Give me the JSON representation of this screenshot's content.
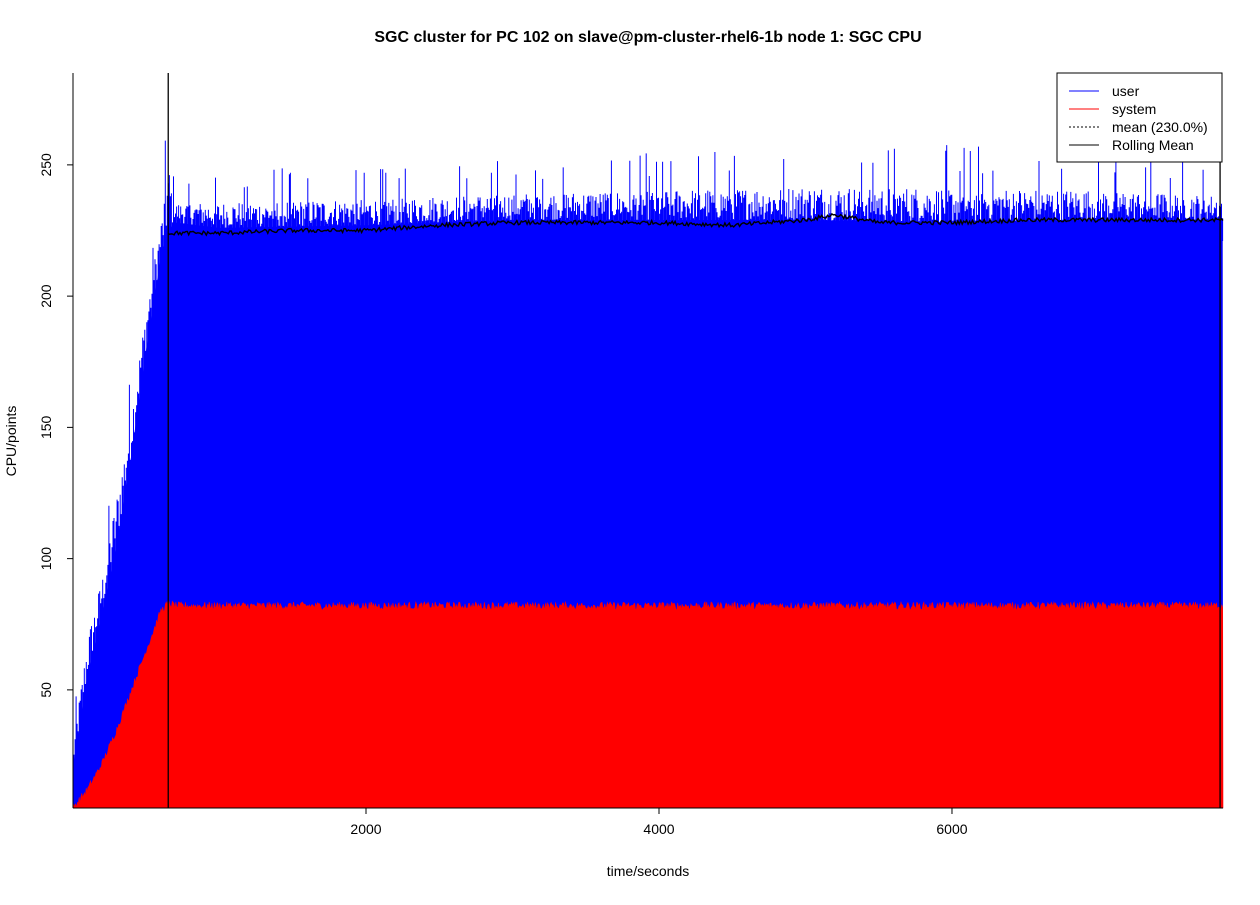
{
  "chart_data": {
    "type": "area",
    "title": "SGC cluster for PC 102 on slave@pm-cluster-rhel6-1b node 1: SGC CPU",
    "xlabel": "time/seconds",
    "ylabel": "CPU/points",
    "xlim": [
      0,
      7850
    ],
    "ylim": [
      5,
      285
    ],
    "x_ticks": [
      2000,
      4000,
      6000
    ],
    "y_ticks": [
      50,
      100,
      150,
      200,
      250
    ],
    "x_tick_labels": [
      "2000",
      "4000",
      "6000"
    ],
    "y_tick_labels": [
      "50",
      "100",
      "150",
      "200",
      "250"
    ],
    "legend_position": "top-right",
    "grid": false,
    "series": [
      {
        "name": "user",
        "role": "stacked-total",
        "color": "#0000ff",
        "x": [
          0,
          100,
          200,
          300,
          400,
          500,
          600,
          650,
          700,
          1000,
          2000,
          3000,
          4000,
          5000,
          6000,
          7000,
          7850
        ],
        "values": [
          20,
          55,
          80,
          105,
          140,
          180,
          215,
          225,
          228,
          226,
          227,
          229,
          229,
          229,
          228,
          229,
          229
        ],
        "max_values": [
          40,
          90,
          110,
          150,
          180,
          215,
          245,
          285,
          245,
          248,
          250,
          252,
          255,
          258,
          258,
          255,
          250
        ]
      },
      {
        "name": "system",
        "color": "#ff0000",
        "x": [
          0,
          100,
          200,
          300,
          400,
          500,
          600,
          650,
          700,
          1000,
          2000,
          3000,
          4000,
          5000,
          6000,
          7000,
          7850
        ],
        "values": [
          5,
          12,
          22,
          35,
          50,
          65,
          80,
          83,
          82,
          82,
          82,
          82,
          82,
          82,
          82,
          82,
          82
        ]
      },
      {
        "name": "mean (230.0%)",
        "color": "#000000",
        "line_style": "dotted",
        "value": 230.0
      },
      {
        "name": "Rolling Mean",
        "color": "#000000",
        "line_style": "solid",
        "x": [
          650,
          1000,
          1500,
          2000,
          2500,
          3000,
          3500,
          4000,
          4500,
          5000,
          5200,
          5500,
          6000,
          6500,
          7000,
          7500,
          7850
        ],
        "values": [
          224,
          224,
          225,
          225,
          227,
          228,
          228,
          228,
          227,
          229,
          231,
          228,
          228,
          229,
          229,
          229,
          229
        ]
      }
    ],
    "annotations": [
      {
        "type": "vertical-line",
        "x": 650,
        "color": "#000000"
      },
      {
        "type": "vertical-line",
        "x": 7830,
        "color": "#000000"
      }
    ]
  }
}
